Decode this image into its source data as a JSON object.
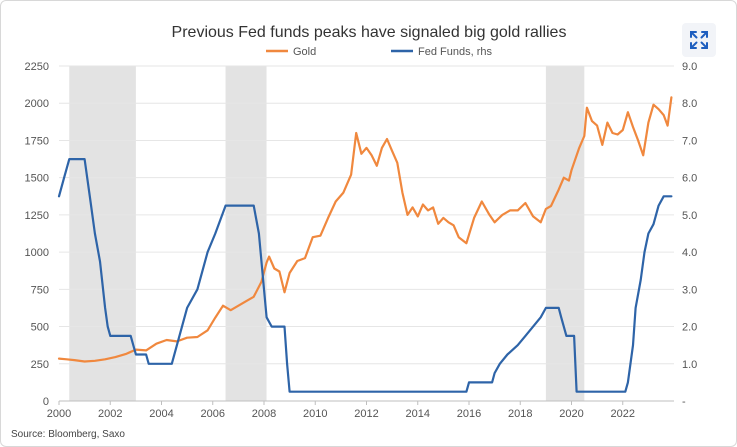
{
  "ui": {
    "expand_icon": "expand-icon",
    "expand_icon_color": "#1f5fbf"
  },
  "chart_data": {
    "type": "line",
    "title": "Previous Fed funds peaks have signaled big gold rallies",
    "source": "Source: Bloomberg, Saxo",
    "x_ticks": [
      "2000",
      "2002",
      "2004",
      "2006",
      "2008",
      "2010",
      "2012",
      "2014",
      "2016",
      "2018",
      "2020",
      "2022"
    ],
    "xlim": [
      2000,
      2024
    ],
    "y_left": {
      "lim": [
        0,
        2250
      ],
      "ticks": [
        "0",
        "250",
        "500",
        "750",
        "1000",
        "1250",
        "1500",
        "1750",
        "2000",
        "2250"
      ]
    },
    "y_right": {
      "lim": [
        0,
        9
      ],
      "ticks": [
        "-",
        "1.0",
        "2.0",
        "3.0",
        "4.0",
        "5.0",
        "6.0",
        "7.0",
        "8.0",
        "9.0"
      ]
    },
    "grid": "horizontal",
    "legend_position": "top-center",
    "shaded_periods": [
      [
        2000.4,
        2003.0
      ],
      [
        2006.5,
        2008.1
      ],
      [
        2019.0,
        2020.5
      ]
    ],
    "shade_color": "#e3e3e3",
    "series": [
      {
        "name": "Gold",
        "axis": "left",
        "color": "#f0883e",
        "points": [
          [
            2000.0,
            285
          ],
          [
            2000.3,
            280
          ],
          [
            2000.6,
            275
          ],
          [
            2001.0,
            265
          ],
          [
            2001.4,
            270
          ],
          [
            2001.8,
            280
          ],
          [
            2002.2,
            295
          ],
          [
            2002.6,
            315
          ],
          [
            2003.0,
            345
          ],
          [
            2003.4,
            340
          ],
          [
            2003.8,
            385
          ],
          [
            2004.2,
            410
          ],
          [
            2004.6,
            400
          ],
          [
            2005.0,
            425
          ],
          [
            2005.4,
            430
          ],
          [
            2005.8,
            475
          ],
          [
            2006.1,
            560
          ],
          [
            2006.4,
            640
          ],
          [
            2006.7,
            610
          ],
          [
            2007.0,
            640
          ],
          [
            2007.3,
            670
          ],
          [
            2007.6,
            700
          ],
          [
            2007.9,
            800
          ],
          [
            2008.1,
            930
          ],
          [
            2008.2,
            970
          ],
          [
            2008.4,
            890
          ],
          [
            2008.6,
            870
          ],
          [
            2008.8,
            730
          ],
          [
            2009.0,
            860
          ],
          [
            2009.3,
            940
          ],
          [
            2009.6,
            960
          ],
          [
            2009.9,
            1100
          ],
          [
            2010.2,
            1110
          ],
          [
            2010.5,
            1230
          ],
          [
            2010.8,
            1340
          ],
          [
            2011.1,
            1400
          ],
          [
            2011.4,
            1520
          ],
          [
            2011.6,
            1800
          ],
          [
            2011.8,
            1660
          ],
          [
            2012.0,
            1700
          ],
          [
            2012.2,
            1650
          ],
          [
            2012.4,
            1580
          ],
          [
            2012.6,
            1700
          ],
          [
            2012.8,
            1760
          ],
          [
            2013.0,
            1680
          ],
          [
            2013.2,
            1600
          ],
          [
            2013.4,
            1400
          ],
          [
            2013.6,
            1250
          ],
          [
            2013.8,
            1300
          ],
          [
            2014.0,
            1240
          ],
          [
            2014.2,
            1320
          ],
          [
            2014.4,
            1280
          ],
          [
            2014.6,
            1300
          ],
          [
            2014.8,
            1190
          ],
          [
            2015.0,
            1230
          ],
          [
            2015.2,
            1200
          ],
          [
            2015.4,
            1180
          ],
          [
            2015.6,
            1100
          ],
          [
            2015.9,
            1060
          ],
          [
            2016.2,
            1230
          ],
          [
            2016.5,
            1340
          ],
          [
            2016.8,
            1250
          ],
          [
            2017.0,
            1200
          ],
          [
            2017.3,
            1250
          ],
          [
            2017.6,
            1280
          ],
          [
            2017.9,
            1280
          ],
          [
            2018.2,
            1330
          ],
          [
            2018.5,
            1240
          ],
          [
            2018.8,
            1200
          ],
          [
            2019.0,
            1290
          ],
          [
            2019.2,
            1310
          ],
          [
            2019.5,
            1420
          ],
          [
            2019.7,
            1500
          ],
          [
            2019.9,
            1480
          ],
          [
            2020.0,
            1550
          ],
          [
            2020.3,
            1700
          ],
          [
            2020.5,
            1780
          ],
          [
            2020.6,
            1970
          ],
          [
            2020.8,
            1880
          ],
          [
            2021.0,
            1850
          ],
          [
            2021.2,
            1720
          ],
          [
            2021.4,
            1870
          ],
          [
            2021.6,
            1800
          ],
          [
            2021.8,
            1790
          ],
          [
            2022.0,
            1820
          ],
          [
            2022.2,
            1940
          ],
          [
            2022.4,
            1840
          ],
          [
            2022.6,
            1750
          ],
          [
            2022.8,
            1650
          ],
          [
            2023.0,
            1870
          ],
          [
            2023.2,
            1990
          ],
          [
            2023.4,
            1960
          ],
          [
            2023.6,
            1920
          ],
          [
            2023.75,
            1850
          ],
          [
            2023.9,
            2040
          ]
        ]
      },
      {
        "name": "Fed Funds, rhs",
        "axis": "right",
        "color": "#2e64a8",
        "points": [
          [
            2000.0,
            5.5
          ],
          [
            2000.2,
            6.0
          ],
          [
            2000.4,
            6.5
          ],
          [
            2001.0,
            6.5
          ],
          [
            2001.2,
            5.5
          ],
          [
            2001.4,
            4.5
          ],
          [
            2001.6,
            3.75
          ],
          [
            2001.8,
            2.5
          ],
          [
            2001.9,
            2.0
          ],
          [
            2002.0,
            1.75
          ],
          [
            2002.8,
            1.75
          ],
          [
            2003.0,
            1.25
          ],
          [
            2003.4,
            1.25
          ],
          [
            2003.5,
            1.0
          ],
          [
            2004.4,
            1.0
          ],
          [
            2004.6,
            1.5
          ],
          [
            2004.8,
            2.0
          ],
          [
            2005.0,
            2.5
          ],
          [
            2005.4,
            3.0
          ],
          [
            2005.8,
            4.0
          ],
          [
            2006.1,
            4.5
          ],
          [
            2006.5,
            5.25
          ],
          [
            2007.6,
            5.25
          ],
          [
            2007.8,
            4.5
          ],
          [
            2008.0,
            3.0
          ],
          [
            2008.1,
            2.25
          ],
          [
            2008.3,
            2.0
          ],
          [
            2008.8,
            2.0
          ],
          [
            2008.9,
            1.0
          ],
          [
            2009.0,
            0.25
          ],
          [
            2015.9,
            0.25
          ],
          [
            2016.0,
            0.5
          ],
          [
            2016.9,
            0.5
          ],
          [
            2017.0,
            0.75
          ],
          [
            2017.2,
            1.0
          ],
          [
            2017.5,
            1.25
          ],
          [
            2017.9,
            1.5
          ],
          [
            2018.2,
            1.75
          ],
          [
            2018.5,
            2.0
          ],
          [
            2018.8,
            2.25
          ],
          [
            2019.0,
            2.5
          ],
          [
            2019.5,
            2.5
          ],
          [
            2019.6,
            2.25
          ],
          [
            2019.8,
            1.75
          ],
          [
            2020.1,
            1.75
          ],
          [
            2020.2,
            0.25
          ],
          [
            2022.1,
            0.25
          ],
          [
            2022.2,
            0.5
          ],
          [
            2022.4,
            1.5
          ],
          [
            2022.5,
            2.5
          ],
          [
            2022.7,
            3.25
          ],
          [
            2022.85,
            4.0
          ],
          [
            2023.0,
            4.5
          ],
          [
            2023.2,
            4.75
          ],
          [
            2023.4,
            5.25
          ],
          [
            2023.6,
            5.5
          ],
          [
            2023.9,
            5.5
          ]
        ]
      }
    ]
  }
}
